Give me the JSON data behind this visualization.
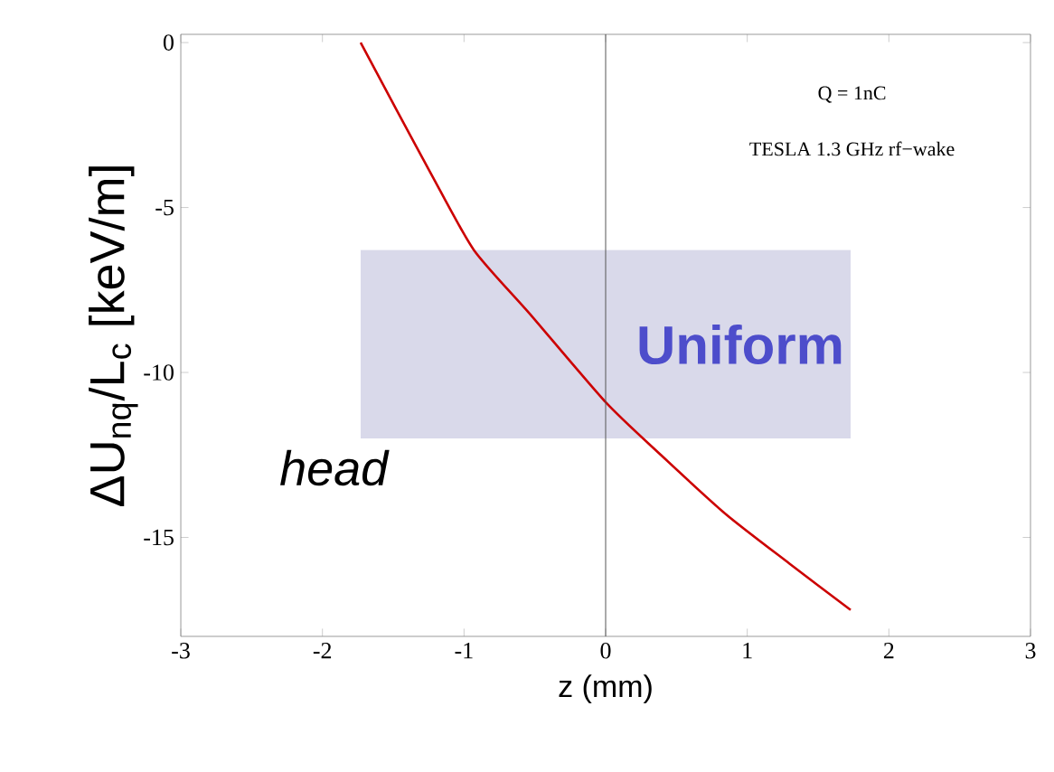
{
  "chart_data": {
    "type": "line",
    "xlabel": "z (mm)",
    "ylabel": "ΔU$_{nq}$/L$_{c}$  [keV/m]",
    "xlim": [
      -3,
      3
    ],
    "ylim": [
      -18,
      0.25
    ],
    "xticks": [
      -3,
      -2,
      -1,
      0,
      1,
      2,
      3
    ],
    "yticks": [
      -15,
      -10,
      -5,
      0
    ],
    "grid": false,
    "series": [
      {
        "name": "Uniform",
        "color": "#d9d9ea",
        "x": [
          -1.73,
          1.73
        ],
        "values": [
          -6.3,
          -6.3
        ],
        "lower": [
          -12.0,
          -12.0
        ],
        "upper": [
          -6.3,
          -6.3
        ]
      },
      {
        "color": "#cc0000",
        "x": [
          -1.73,
          -1.46,
          -1.23,
          -0.93,
          -0.54,
          0,
          0.39,
          0.85,
          1.3,
          1.73
        ],
        "values": [
          0,
          -2.17,
          -4.0,
          -6.29,
          -8.2,
          -10.9,
          -12.5,
          -14.3,
          -15.8,
          -17.2
        ]
      }
    ],
    "ref_lines": [
      {
        "axis": "x",
        "value": 0,
        "color": "#555555"
      }
    ],
    "annotations": [
      "Q = 1nC",
      "TESLA 1.3 GHz rf−wake",
      "head"
    ]
  }
}
